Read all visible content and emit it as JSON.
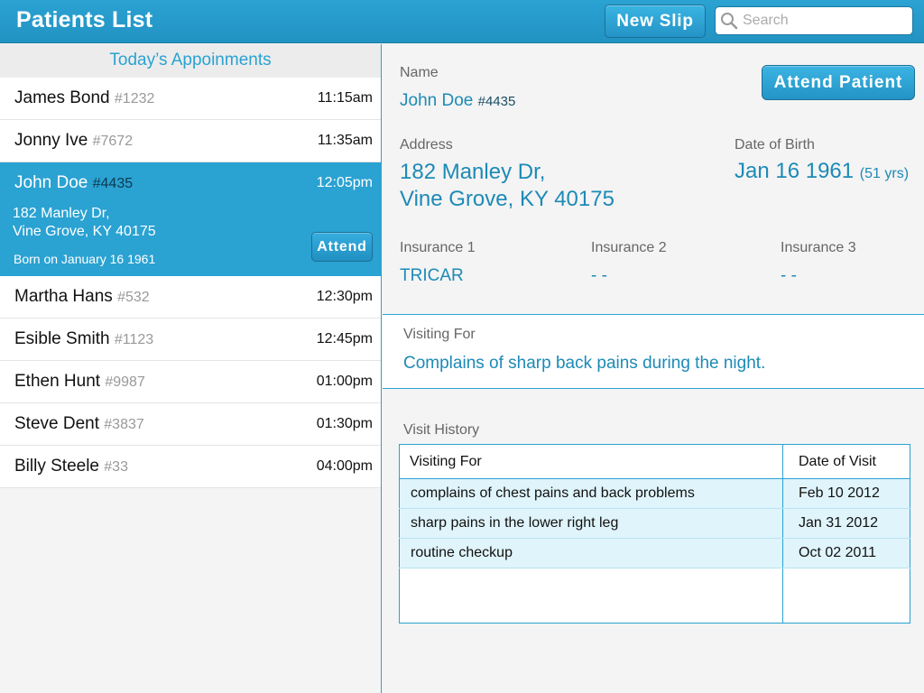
{
  "header": {
    "title": "Patients List",
    "new_slip_label": "New Slip",
    "search_placeholder": "Search"
  },
  "appointments": {
    "section_title": "Today’s Appoinments",
    "attend_label": "Attend",
    "items": [
      {
        "name": "James Bond",
        "id": "#1232",
        "time": "11:15am"
      },
      {
        "name": "Jonny Ive",
        "id": "#7672",
        "time": "11:35am"
      },
      {
        "name": "John Doe",
        "id": "#4435",
        "time": "12:05pm",
        "address_line1": "182 Manley Dr,",
        "address_line2": "Vine Grove, KY 40175",
        "born": "Born on January 16 1961"
      },
      {
        "name": "Martha Hans",
        "id": "#532",
        "time": "12:30pm"
      },
      {
        "name": "Esible Smith",
        "id": "#1123",
        "time": "12:45pm"
      },
      {
        "name": "Ethen Hunt",
        "id": "#9987",
        "time": "01:00pm"
      },
      {
        "name": "Steve Dent",
        "id": "#3837",
        "time": "01:30pm"
      },
      {
        "name": "Billy Steele",
        "id": "#33",
        "time": "04:00pm"
      }
    ]
  },
  "detail": {
    "name_label": "Name",
    "name": "John Doe",
    "id": "#4435",
    "attend_patient_label": "Attend Patient",
    "address_label": "Address",
    "address_line1": "182 Manley Dr,",
    "address_line2": "Vine Grove, KY 40175",
    "dob_label": "Date of Birth",
    "dob": "Jan 16 1961",
    "age": "(51 yrs)",
    "insurance1_label": "Insurance 1",
    "insurance1": "TRICAR",
    "insurance2_label": "Insurance 2",
    "insurance2": "- -",
    "insurance3_label": "Insurance 3",
    "insurance3": "- -",
    "visiting_for_label": "Visiting For",
    "visiting_for": "Complains of sharp back pains during the night."
  },
  "history": {
    "label": "Visit History",
    "col1": "Visiting For",
    "col2": "Date of Visit",
    "rows": [
      {
        "reason": "complains of chest pains and back problems",
        "date": "Feb 10 2012"
      },
      {
        "reason": "sharp pains in the lower right leg",
        "date": "Jan 31 2012"
      },
      {
        "reason": "routine checkup",
        "date": "Oct 02 2011"
      }
    ]
  },
  "colors": {
    "accent": "#2aa2d2",
    "value_text": "#1d8ab6"
  }
}
